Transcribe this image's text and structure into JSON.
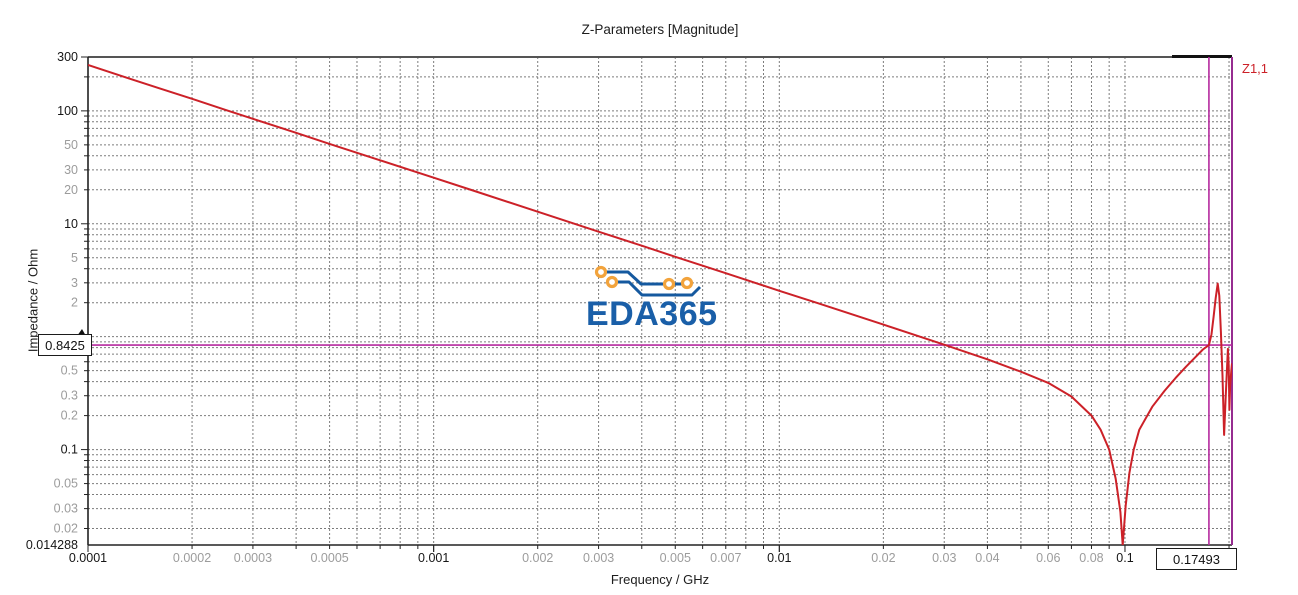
{
  "chart_data": {
    "type": "line",
    "title": "Z-Parameters [Magnitude]",
    "xlabel": "Frequency / GHz",
    "ylabel": "Impedance / Ohm",
    "xscale": "log",
    "yscale": "log",
    "xlim": [
      0.0001,
      0.204
    ],
    "ylim": [
      0.014288,
      300
    ],
    "grid": {
      "style": "dashed",
      "minor_per_decade": true,
      "color": "#7c7c7c"
    },
    "xticks": [
      {
        "v": 0.0001,
        "label": "0.0001",
        "major": true
      },
      {
        "v": 0.0002,
        "label": "0.0002",
        "major": false
      },
      {
        "v": 0.0003,
        "label": "0.0003",
        "major": false
      },
      {
        "v": 0.0005,
        "label": "0.0005",
        "major": false
      },
      {
        "v": 0.001,
        "label": "0.001",
        "major": true
      },
      {
        "v": 0.002,
        "label": "0.002",
        "major": false
      },
      {
        "v": 0.003,
        "label": "0.003",
        "major": false
      },
      {
        "v": 0.005,
        "label": "0.005",
        "major": false
      },
      {
        "v": 0.007,
        "label": "0.007",
        "major": false
      },
      {
        "v": 0.01,
        "label": "0.01",
        "major": true
      },
      {
        "v": 0.02,
        "label": "0.02",
        "major": false
      },
      {
        "v": 0.03,
        "label": "0.03",
        "major": false
      },
      {
        "v": 0.04,
        "label": "0.04",
        "major": false
      },
      {
        "v": 0.06,
        "label": "0.06",
        "major": false
      },
      {
        "v": 0.08,
        "label": "0.08",
        "major": false
      },
      {
        "v": 0.1,
        "label": "0.1",
        "major": true
      }
    ],
    "yticks": [
      {
        "v": 300,
        "label": "300",
        "major": true
      },
      {
        "v": 100,
        "label": "100",
        "major": true
      },
      {
        "v": 50,
        "label": "50",
        "major": false
      },
      {
        "v": 30,
        "label": "30",
        "major": false
      },
      {
        "v": 20,
        "label": "20",
        "major": false
      },
      {
        "v": 10,
        "label": "10",
        "major": true
      },
      {
        "v": 5,
        "label": "5",
        "major": false
      },
      {
        "v": 3,
        "label": "3",
        "major": false
      },
      {
        "v": 2,
        "label": "2",
        "major": false
      },
      {
        "v": 0.5,
        "label": "0.5",
        "major": false
      },
      {
        "v": 0.3,
        "label": "0.3",
        "major": false
      },
      {
        "v": 0.2,
        "label": "0.2",
        "major": false
      },
      {
        "v": 0.1,
        "label": "0.1",
        "major": true
      },
      {
        "v": 0.05,
        "label": "0.05",
        "major": false
      },
      {
        "v": 0.03,
        "label": "0.03",
        "major": false
      },
      {
        "v": 0.02,
        "label": "0.02",
        "major": false
      },
      {
        "v": 0.014288,
        "label": "0.014288",
        "major": true
      }
    ],
    "legend": {
      "position": "top-right",
      "entries": [
        {
          "label": "Z1,1",
          "color": "#cc2128"
        }
      ]
    },
    "series": [
      {
        "name": "Z1,1",
        "color": "#cc2128",
        "points": [
          [
            0.0001,
            255
          ],
          [
            0.00013,
            196
          ],
          [
            0.00016,
            159
          ],
          [
            0.0002,
            128
          ],
          [
            0.00025,
            102
          ],
          [
            0.0003,
            85
          ],
          [
            0.0004,
            64
          ],
          [
            0.0005,
            51
          ],
          [
            0.0007,
            36.5
          ],
          [
            0.001,
            25.6
          ],
          [
            0.0013,
            19.7
          ],
          [
            0.002,
            12.8
          ],
          [
            0.003,
            8.5
          ],
          [
            0.004,
            6.4
          ],
          [
            0.005,
            5.1
          ],
          [
            0.007,
            3.65
          ],
          [
            0.01,
            2.55
          ],
          [
            0.013,
            1.97
          ],
          [
            0.02,
            1.28
          ],
          [
            0.03,
            0.85
          ],
          [
            0.04,
            0.63
          ],
          [
            0.05,
            0.49
          ],
          [
            0.06,
            0.39
          ],
          [
            0.07,
            0.295
          ],
          [
            0.08,
            0.2
          ],
          [
            0.085,
            0.15
          ],
          [
            0.09,
            0.1
          ],
          [
            0.094,
            0.055
          ],
          [
            0.097,
            0.028
          ],
          [
            0.0985,
            0.0143
          ],
          [
            0.1005,
            0.032
          ],
          [
            0.103,
            0.062
          ],
          [
            0.106,
            0.1
          ],
          [
            0.11,
            0.15
          ],
          [
            0.12,
            0.24
          ],
          [
            0.13,
            0.33
          ],
          [
            0.14,
            0.43
          ],
          [
            0.15,
            0.54
          ],
          [
            0.16,
            0.66
          ],
          [
            0.168,
            0.77
          ],
          [
            0.17493,
            0.8425
          ],
          [
            0.178,
            1.05
          ],
          [
            0.1805,
            1.5
          ],
          [
            0.183,
            2.2
          ],
          [
            0.1855,
            2.95
          ],
          [
            0.1875,
            2.3
          ],
          [
            0.1895,
            1.1
          ],
          [
            0.1915,
            0.45
          ],
          [
            0.1935,
            0.135
          ],
          [
            0.1955,
            0.28
          ],
          [
            0.197,
            0.48
          ],
          [
            0.1985,
            0.78
          ],
          [
            0.1995,
            0.56
          ],
          [
            0.2005,
            0.225
          ],
          [
            0.2015,
            0.36
          ],
          [
            0.203,
            0.5
          ],
          [
            0.204,
            0.58
          ]
        ]
      }
    ],
    "markers": {
      "axis_marker_x": {
        "value": 0.17493,
        "label": "0.17493"
      },
      "axis_marker_y": {
        "value": 0.8425,
        "label": "0.8425"
      },
      "line_color": "#b52a9f"
    },
    "colors": {
      "axis": "#3a3a3a",
      "right_border": "#962c90",
      "major_label": "#161616",
      "minor_label": "#9c9c9c"
    }
  },
  "watermark": {
    "text": "EDA365",
    "text_color": "#1a5fa8",
    "trace_color": "#15599f",
    "pad_color": "#f2a33c"
  }
}
